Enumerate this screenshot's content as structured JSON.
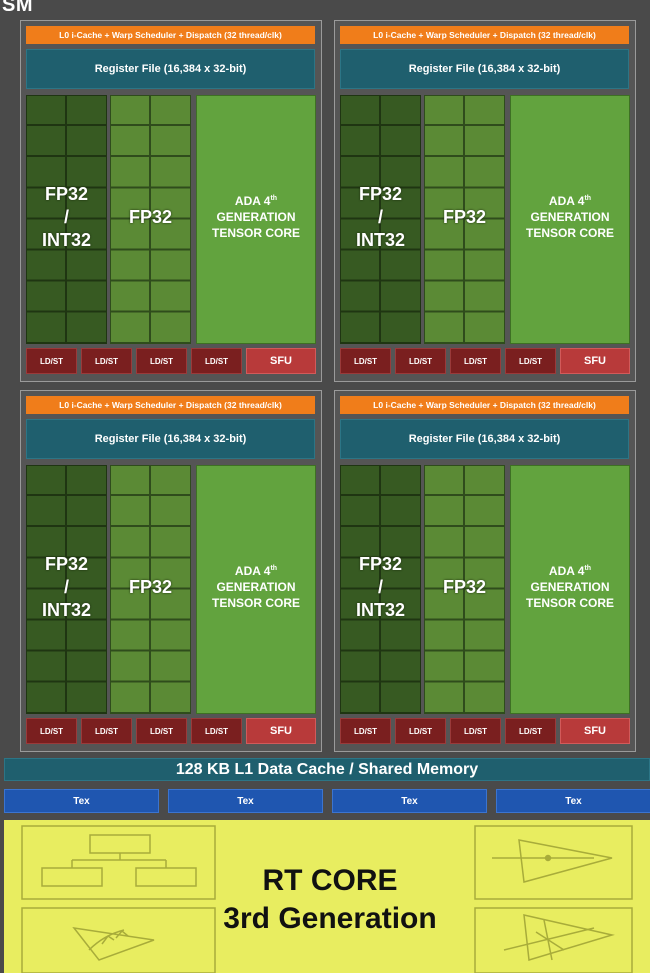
{
  "header": {
    "label": "SM"
  },
  "quadrants": [
    {
      "icache": "L0 i-Cache + Warp Scheduler + Dispatch (32 thread/clk)",
      "register_file": "Register File (16,384 x 32-bit)",
      "fp_int_line1": "FP32",
      "fp_int_line2": "/",
      "fp_int_line3": "INT32",
      "fp32": "FP32",
      "tensor_line1": "ADA 4",
      "tensor_sup": "th",
      "tensor_line2": "GENERATION",
      "tensor_line3": "TENSOR CORE",
      "ldst": [
        "LD/ST",
        "LD/ST",
        "LD/ST",
        "LD/ST"
      ],
      "sfu": "SFU"
    },
    {
      "icache": "L0 i-Cache + Warp Scheduler + Dispatch (32 thread/clk)",
      "register_file": "Register File (16,384 x 32-bit)",
      "fp_int_line1": "FP32",
      "fp_int_line2": "/",
      "fp_int_line3": "INT32",
      "fp32": "FP32",
      "tensor_line1": "ADA 4",
      "tensor_sup": "th",
      "tensor_line2": "GENERATION",
      "tensor_line3": "TENSOR CORE",
      "ldst": [
        "LD/ST",
        "LD/ST",
        "LD/ST",
        "LD/ST"
      ],
      "sfu": "SFU"
    },
    {
      "icache": "L0 i-Cache + Warp Scheduler + Dispatch (32 thread/clk)",
      "register_file": "Register File (16,384 x 32-bit)",
      "fp_int_line1": "FP32",
      "fp_int_line2": "/",
      "fp_int_line3": "INT32",
      "fp32": "FP32",
      "tensor_line1": "ADA 4",
      "tensor_sup": "th",
      "tensor_line2": "GENERATION",
      "tensor_line3": "TENSOR CORE",
      "ldst": [
        "LD/ST",
        "LD/ST",
        "LD/ST",
        "LD/ST"
      ],
      "sfu": "SFU"
    },
    {
      "icache": "L0 i-Cache + Warp Scheduler + Dispatch (32 thread/clk)",
      "register_file": "Register File (16,384 x 32-bit)",
      "fp_int_line1": "FP32",
      "fp_int_line2": "/",
      "fp_int_line3": "INT32",
      "fp32": "FP32",
      "tensor_line1": "ADA 4",
      "tensor_sup": "th",
      "tensor_line2": "GENERATION",
      "tensor_line3": "TENSOR CORE",
      "ldst": [
        "LD/ST",
        "LD/ST",
        "LD/ST",
        "LD/ST"
      ],
      "sfu": "SFU"
    }
  ],
  "l1_cache": "128 KB L1 Data Cache / Shared Memory",
  "tex_units": [
    "Tex",
    "Tex",
    "Tex",
    "Tex"
  ],
  "rt_core": {
    "line1": "RT CORE",
    "line2": "3rd Generation"
  },
  "colors": {
    "background": "#4a4a4a",
    "icache": "#f07d1a",
    "register_file": "#1f5f6e",
    "fp_int": "#375a22",
    "fp32": "#5b8a35",
    "tensor": "#62a33e",
    "ldst": "#7a1f1f",
    "sfu": "#b83a3a",
    "tex": "#1f56b0",
    "rt_core": "#e8ed60"
  }
}
